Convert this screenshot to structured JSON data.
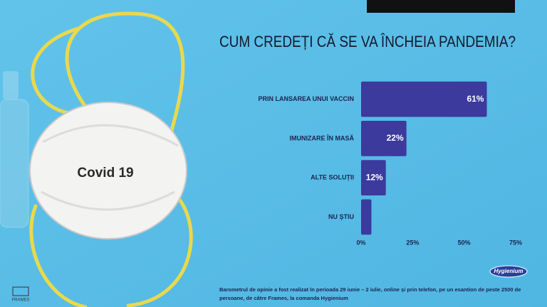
{
  "chart_data": {
    "type": "bar",
    "orientation": "horizontal",
    "title": "CUM CREDEȚI CĂ SE VA ÎNCHEIA PANDEMIA?",
    "categories": [
      "PRIN LANSAREA UNUI VACCIN",
      "IMUNIZARE ÎN MASĂ",
      "ALTE SOLUȚII",
      "NU ȘTIU"
    ],
    "values": [
      61,
      22,
      12,
      5
    ],
    "value_labels": [
      "61%",
      "22%",
      "12%",
      null
    ],
    "color": "#3c3a9c",
    "xlim": [
      0,
      75
    ],
    "xticks": [
      {
        "value": 0,
        "label": "0%"
      },
      {
        "value": 25,
        "label": "25%"
      },
      {
        "value": 50,
        "label": "50%"
      },
      {
        "value": 75,
        "label": "75%"
      }
    ],
    "grid": false
  },
  "image_text": "Covid 19",
  "logos": {
    "left": "FRAMES",
    "right": "Hygienium"
  },
  "footnote": [
    "Barometrul de opinie a fost realizat în perioada 29 iunie – 2 iulie, online și prin telefon, pe un esantion de peste 2500 de",
    "persoane, de către Frames, la comanda Hygienium"
  ]
}
